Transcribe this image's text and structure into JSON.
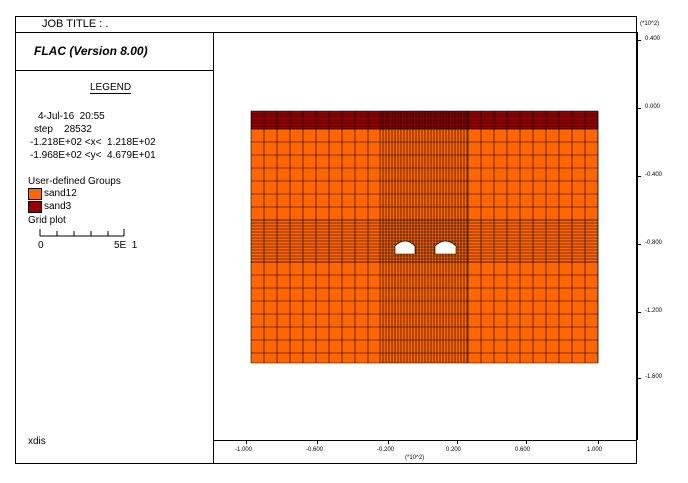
{
  "header": {
    "job_title": "JOB TITLE :  ."
  },
  "panel": {
    "program": "FLAC (Version 8.00)",
    "legend_title": "LEGEND",
    "date": "4-Jul-16  20:55",
    "step": "step    28532",
    "x_range": "-1.218E+02 <x<  1.218E+02",
    "y_range": "-1.968E+02 <y<  4.679E+01",
    "groups_title": "User-defined Groups",
    "groups": [
      {
        "name": "sand12",
        "color": "#ff6600"
      },
      {
        "name": "sand3",
        "color": "#990000"
      }
    ],
    "grid_plot_label": "Grid plot",
    "scale_min": "0",
    "scale_max": "5E  1",
    "footer": "xdis"
  },
  "axes": {
    "y_unit": "(*10^2)",
    "x_unit": "(*10^2)",
    "y_ticks": [
      "0.400",
      "0.000",
      "-0.400",
      "-0.800",
      "-1.200",
      "-1.600"
    ],
    "x_ticks": [
      "-1.000",
      "-0.600",
      "-0.200",
      "0.200",
      "0.600",
      "1.000"
    ]
  },
  "mesh": {
    "fill_color": "#ff6600",
    "top_color": "#990000",
    "opening_color": "#ffffff"
  }
}
